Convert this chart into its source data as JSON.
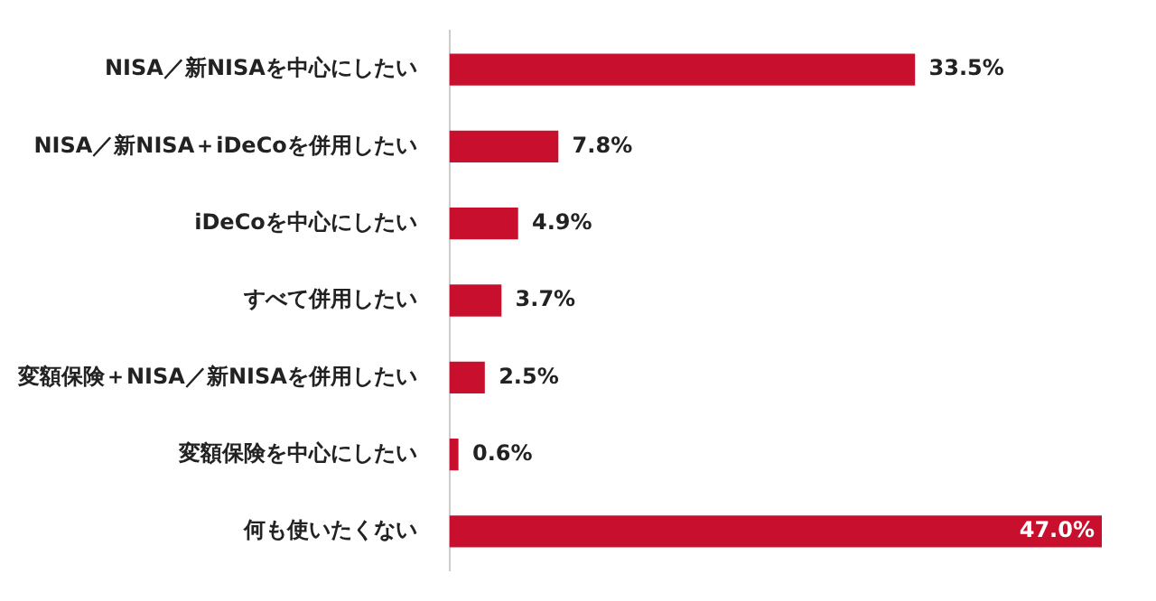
{
  "chart_data": {
    "type": "bar",
    "orientation": "horizontal",
    "categories": [
      "NISA／新NISAを中心にしたい",
      "NISA／新NISA＋iDeCoを併用したい",
      "iDeCoを中心にしたい",
      "すべて併用したい",
      "変額保険＋NISA／新NISAを併用したい",
      "変額保険を中心にしたい",
      "何も使いたくない"
    ],
    "values": [
      33.5,
      7.8,
      4.9,
      3.7,
      2.5,
      0.6,
      47.0
    ],
    "value_labels": [
      "33.5%",
      "7.8%",
      "4.9%",
      "3.7%",
      "2.5%",
      "0.6%",
      "47.0%"
    ],
    "color": "#c8102e",
    "xlim": [
      0,
      47
    ],
    "tick_labels": "y",
    "legend": false
  }
}
